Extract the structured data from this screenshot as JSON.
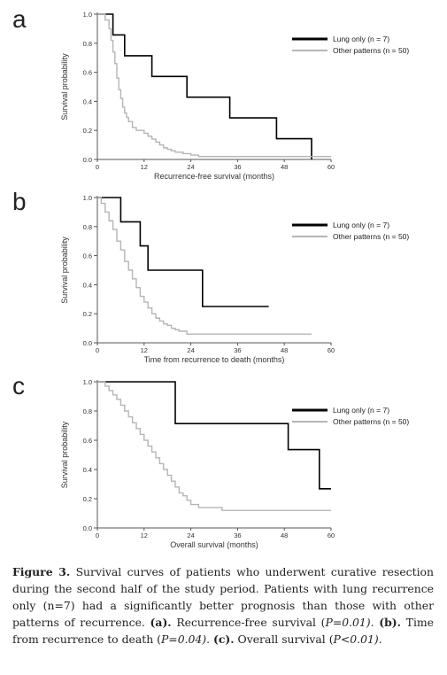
{
  "chart_data": [
    {
      "type": "line",
      "panel_label": "a",
      "xlabel": "Recurrence-free survival (months)",
      "ylabel": "Survival probability",
      "xlim": [
        0,
        60
      ],
      "ylim": [
        0,
        1
      ],
      "xticks": [
        "0",
        "12",
        "24",
        "36",
        "48",
        "60"
      ],
      "yticks": [
        "0.0",
        "0.2",
        "0.4",
        "0.6",
        "0.8",
        "1.0"
      ],
      "series": [
        {
          "name": "Lung only (n =  7)",
          "color": "#000000",
          "x": [
            0,
            4,
            7,
            14,
            23,
            34,
            46,
            55
          ],
          "y": [
            1.0,
            0.857,
            0.714,
            0.571,
            0.429,
            0.286,
            0.143,
            0.0
          ]
        },
        {
          "name": "Other patterns (n = 50)",
          "color": "#b5b5b5",
          "x": [
            0,
            2,
            3,
            3.5,
            4,
            4.5,
            5,
            5.5,
            6,
            6.5,
            7,
            7.5,
            8,
            9,
            10,
            12,
            13,
            14,
            15,
            16,
            17,
            18,
            19,
            20,
            22,
            24,
            26,
            60
          ],
          "y": [
            1.0,
            0.96,
            0.9,
            0.82,
            0.74,
            0.66,
            0.56,
            0.48,
            0.42,
            0.36,
            0.32,
            0.29,
            0.26,
            0.22,
            0.2,
            0.18,
            0.16,
            0.14,
            0.12,
            0.1,
            0.08,
            0.07,
            0.06,
            0.05,
            0.04,
            0.03,
            0.02,
            0.02
          ]
        }
      ]
    },
    {
      "type": "line",
      "panel_label": "b",
      "xlabel": "Time from recurrence to death (months)",
      "ylabel": "Survival probability",
      "xlim": [
        0,
        60
      ],
      "ylim": [
        0,
        1
      ],
      "xticks": [
        "0",
        "12",
        "24",
        "36",
        "48",
        "60"
      ],
      "yticks": [
        "0.0",
        "0.2",
        "0.4",
        "0.6",
        "0.8",
        "1.0"
      ],
      "series": [
        {
          "name": "Lung only (n = 7)",
          "color": "#000000",
          "x": [
            0,
            6,
            11,
            13,
            27,
            44
          ],
          "y": [
            1.0,
            0.833,
            0.667,
            0.5,
            0.25,
            0.25
          ]
        },
        {
          "name": "Other patterns (n = 50)",
          "color": "#b5b5b5",
          "x": [
            0,
            1,
            2,
            3,
            4,
            5,
            6,
            7,
            8,
            9,
            10,
            11,
            12,
            13,
            14,
            15,
            16,
            17,
            18,
            19,
            20,
            21,
            23,
            55
          ],
          "y": [
            1.0,
            0.96,
            0.9,
            0.84,
            0.78,
            0.7,
            0.64,
            0.56,
            0.5,
            0.44,
            0.38,
            0.32,
            0.28,
            0.24,
            0.2,
            0.17,
            0.15,
            0.13,
            0.12,
            0.1,
            0.09,
            0.08,
            0.06,
            0.06
          ]
        }
      ]
    },
    {
      "type": "line",
      "panel_label": "c",
      "xlabel": "Overall survival (months)",
      "ylabel": "Survival probability",
      "xlim": [
        0,
        60
      ],
      "ylim": [
        0,
        1
      ],
      "xticks": [
        "0",
        "12",
        "24",
        "36",
        "48",
        "60"
      ],
      "yticks": [
        "0.0",
        "0.2",
        "0.4",
        "0.6",
        "0.8",
        "1.0"
      ],
      "series": [
        {
          "name": "Lung only (n = 7)",
          "color": "#000000",
          "x": [
            0,
            20,
            49,
            57,
            60
          ],
          "y": [
            1.0,
            0.714,
            0.536,
            0.268,
            0.268
          ]
        },
        {
          "name": "Other patterns (n = 50)",
          "color": "#b5b5b5",
          "x": [
            0,
            2,
            3,
            4,
            5,
            6,
            7,
            8,
            9,
            10,
            11,
            12,
            13,
            14,
            15,
            16,
            17,
            18,
            19,
            20,
            21,
            22,
            23,
            24,
            26,
            32,
            60
          ],
          "y": [
            1.0,
            0.97,
            0.94,
            0.91,
            0.88,
            0.84,
            0.8,
            0.76,
            0.72,
            0.68,
            0.64,
            0.6,
            0.56,
            0.52,
            0.48,
            0.44,
            0.4,
            0.36,
            0.32,
            0.28,
            0.24,
            0.22,
            0.19,
            0.16,
            0.14,
            0.12,
            0.12
          ]
        }
      ]
    }
  ],
  "caption": {
    "label": "Figure 3.",
    "text": " Survival curves of patients who underwent curative resection during the second half of the study period. Patients with lung recurrence only (n=7) had a significantly better prognosis than those with other patterns of recurrence. ",
    "a_label": "(a).",
    "a_text": " Recurrence-free survival (",
    "a_p": "P=0.01). ",
    "b_label": "(b).",
    "b_text": " Time from recurrence to death (",
    "b_p": "P=0.04). ",
    "c_label": "(c).",
    "c_text": " Overall survival (",
    "c_p": "P<0.01)."
  }
}
